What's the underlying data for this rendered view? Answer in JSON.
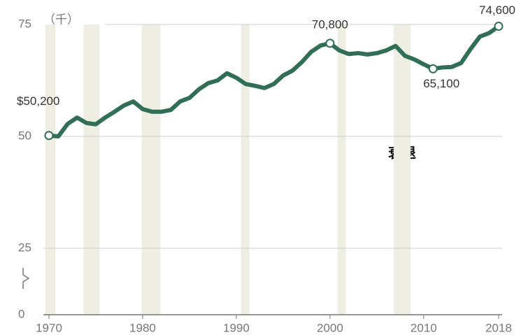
{
  "chart_data": {
    "type": "line",
    "x": [
      1970,
      1971,
      1972,
      1973,
      1974,
      1975,
      1976,
      1977,
      1978,
      1979,
      1980,
      1981,
      1982,
      1983,
      1984,
      1985,
      1986,
      1987,
      1988,
      1989,
      1990,
      1991,
      1992,
      1993,
      1994,
      1995,
      1996,
      1997,
      1998,
      1999,
      2000,
      2001,
      2002,
      2003,
      2004,
      2005,
      2006,
      2007,
      2008,
      2009,
      2010,
      2011,
      2012,
      2013,
      2014,
      2015,
      2016,
      2017,
      2018
    ],
    "series": [
      {
        "color": "#2f6f56",
        "values": [
          50.2,
          50.0,
          52.8,
          54.2,
          53.0,
          52.7,
          54.2,
          55.5,
          56.9,
          57.8,
          56.1,
          55.5,
          55.5,
          55.9,
          57.8,
          58.6,
          60.5,
          61.9,
          62.5,
          64.1,
          63.1,
          61.7,
          61.3,
          60.8,
          61.7,
          63.6,
          64.7,
          66.6,
          68.9,
          70.3,
          70.8,
          69.2,
          68.4,
          68.6,
          68.3,
          68.6,
          69.2,
          70.2,
          68.0,
          67.2,
          66.1,
          65.1,
          65.4,
          65.5,
          66.4,
          69.5,
          72.3,
          73.1,
          74.6
        ],
        "value_labels": [
          "$50,200",
          null,
          null,
          null,
          null,
          null,
          null,
          null,
          null,
          null,
          null,
          null,
          null,
          null,
          null,
          null,
          null,
          null,
          null,
          null,
          null,
          null,
          null,
          null,
          null,
          null,
          null,
          null,
          null,
          null,
          "70,800",
          null,
          null,
          null,
          null,
          null,
          null,
          null,
          null,
          null,
          null,
          "65,100",
          null,
          null,
          null,
          null,
          null,
          null,
          "74,600"
        ]
      }
    ],
    "xlim": [
      1970,
      2018
    ],
    "xticks": [
      1970,
      1980,
      1990,
      2000,
      2010,
      2018
    ],
    "ylim": [
      0,
      75
    ],
    "yticks": [
      0,
      25,
      50,
      75
    ],
    "y_axis_label": "（千）",
    "axis_break": [
      0,
      25
    ],
    "grid": true,
    "recessions": [
      [
        1969.6,
        1970.7
      ],
      [
        1973.7,
        1975.4
      ],
      [
        1979.9,
        1981.9
      ],
      [
        1990.5,
        1991.4
      ],
      [
        2000.8,
        2001.7
      ],
      [
        2006.8,
        2008.6
      ]
    ],
    "recession_color": "#eeeee2",
    "annotation": "衰退"
  }
}
